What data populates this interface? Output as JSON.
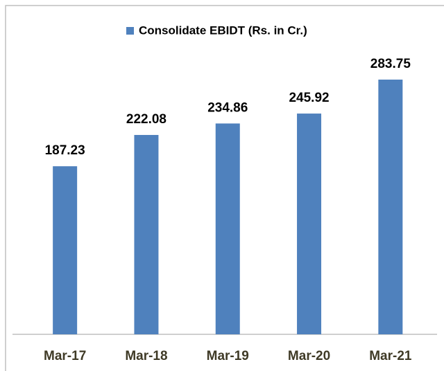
{
  "chart_data": {
    "type": "bar",
    "categories": [
      "Mar-17",
      "Mar-18",
      "Mar-19",
      "Mar-20",
      "Mar-21"
    ],
    "series": [
      {
        "name": "Consolidate EBIDT (Rs. in Cr.)",
        "color": "#4f81bd",
        "values": [
          187.23,
          222.08,
          234.86,
          245.92,
          283.75
        ]
      }
    ],
    "legend": "top"
  }
}
